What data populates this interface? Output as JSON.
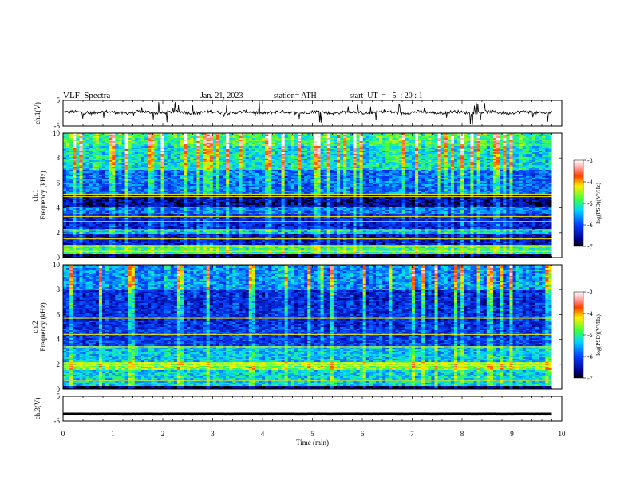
{
  "header": {
    "title": "VLF  Spectra",
    "date": "Jan. 21, 2023",
    "station": "station= ATH",
    "start": "start  UT  =   5  : 20 : 1"
  },
  "chart_data": [
    {
      "type": "line",
      "panel": "ch1-waveform",
      "ylabel": "ch.1(V)",
      "yticks": [
        "5",
        "-5"
      ],
      "ylim": [
        -5,
        5
      ],
      "xlim": [
        0,
        10
      ],
      "data_end_min": 9.8,
      "baseline_v": 0.3,
      "noise_amplitude_v": 1.2,
      "spike_amplitude_v": 4.5,
      "color": "#000000"
    },
    {
      "type": "heatmap",
      "panel": "ch1-spectrogram",
      "ylabel_line1": "ch.1",
      "ylabel_line2": "Frequency  (kHz)",
      "yticks": [
        "10",
        "8",
        "6",
        "4",
        "2",
        "0"
      ],
      "ylim": [
        0,
        10
      ],
      "xlim": [
        0,
        10
      ],
      "data_end_min": 9.8,
      "colorbar": {
        "label": "log(PSD)(V²/Hz)",
        "ticks": [
          "-3",
          "-4",
          "-5",
          "-6",
          "-7"
        ],
        "range": [
          -7,
          -3
        ]
      },
      "bands_khz": [
        {
          "from": 0.0,
          "to": 0.2,
          "level": -7.0
        },
        {
          "from": 0.2,
          "to": 1.0,
          "level": -5.0
        },
        {
          "from": 1.0,
          "to": 1.9,
          "level": -6.4
        },
        {
          "from": 1.9,
          "to": 2.3,
          "level": -5.4
        },
        {
          "from": 2.3,
          "to": 3.5,
          "level": -6.3
        },
        {
          "from": 3.5,
          "to": 4.1,
          "level": -5.8
        },
        {
          "from": 4.1,
          "to": 5.0,
          "level": -6.6
        },
        {
          "from": 5.0,
          "to": 7.0,
          "level": -5.8
        },
        {
          "from": 7.0,
          "to": 9.0,
          "level": -5.2
        },
        {
          "from": 9.0,
          "to": 10.0,
          "level": -4.9
        }
      ],
      "lines_khz": [
        0.5,
        0.9,
        1.5,
        2.2,
        2.9,
        3.3,
        4.9,
        5.1
      ]
    },
    {
      "type": "heatmap",
      "panel": "ch2-spectrogram",
      "ylabel_line1": "ch.2",
      "ylabel_line2": "Frequency  (kHz)",
      "yticks": [
        "10",
        "8",
        "6",
        "4",
        "2",
        "0"
      ],
      "ylim": [
        0,
        10
      ],
      "xlim": [
        0,
        10
      ],
      "data_end_min": 9.8,
      "colorbar": {
        "label": "log(PSD)(V²/Hz)",
        "ticks": [
          "-3",
          "-4",
          "-5",
          "-6",
          "-7"
        ],
        "range": [
          -7,
          -3
        ]
      },
      "bands_khz": [
        {
          "from": 0.0,
          "to": 0.3,
          "level": -6.8
        },
        {
          "from": 0.3,
          "to": 1.6,
          "level": -5.3
        },
        {
          "from": 1.6,
          "to": 2.2,
          "level": -4.6
        },
        {
          "from": 2.2,
          "to": 3.5,
          "level": -5.4
        },
        {
          "from": 3.5,
          "to": 5.0,
          "level": -6.1
        },
        {
          "from": 5.0,
          "to": 8.0,
          "level": -6.2
        },
        {
          "from": 8.0,
          "to": 10.0,
          "level": -5.6
        }
      ],
      "lines_khz": [
        0.7,
        1.9,
        2.1,
        3.4,
        4.4,
        5.7
      ]
    },
    {
      "type": "line",
      "panel": "ch3-waveform",
      "ylabel": "ch.3(V)",
      "yticks": [
        "5",
        "-5"
      ],
      "ylim": [
        -5,
        5
      ],
      "xlim": [
        0,
        10
      ],
      "data_end_min": 9.8,
      "baseline_v": -2.2,
      "noise_amplitude_v": 0.05,
      "spike_amplitude_v": 0,
      "color": "#000000",
      "xlabel": "Time  (min)",
      "xticks": [
        "0",
        "1",
        "2",
        "3",
        "4",
        "5",
        "6",
        "7",
        "8",
        "9",
        "10"
      ]
    }
  ]
}
